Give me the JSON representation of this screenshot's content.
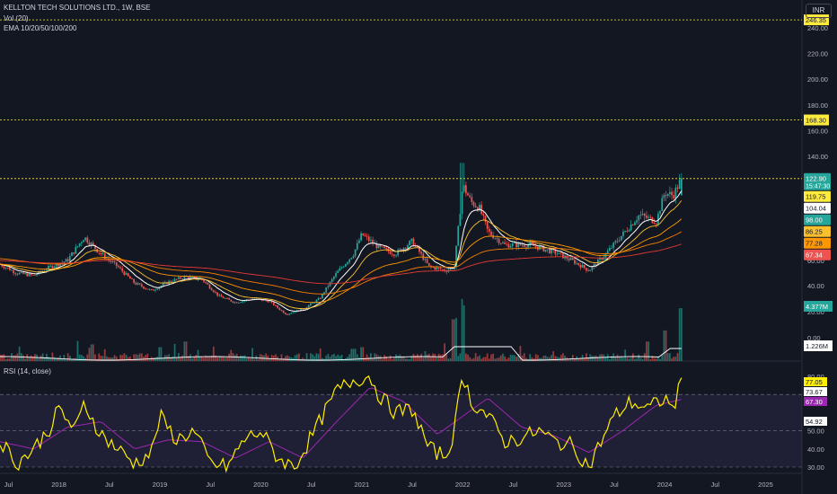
{
  "header": {
    "symbol_line": "KELLTON TECH SOLUTIONS LTD., 1W, BSE",
    "vol_line": "Vol (20)",
    "ema_line": "EMA 10/20/50/100/200",
    "rsi_line": "RSI (14, close)",
    "currency": "INR"
  },
  "colors": {
    "background": "#131722",
    "up": "#26a69a",
    "down": "#ef5350",
    "ema10": "#ffffff",
    "ema20": "#fbc02d",
    "ema50": "#ff9800",
    "ema100": "#f57c00",
    "ema200": "#e53935",
    "rsi": "#ffee00",
    "rsi_ma": "#9c27b0",
    "resistance": "#ffeb3b"
  },
  "chart_data": [
    {
      "type": "candlestick",
      "title": "KELLTON TECH SOLUTIONS LTD., 1W, BSE",
      "currency": "INR",
      "ylim": [
        0,
        250
      ],
      "y_ticks": [
        "240.00",
        "220.00",
        "200.00",
        "180.00",
        "160.00",
        "140.00",
        "60.00",
        "40.00",
        "20.00",
        "0.00"
      ],
      "x_ticks": [
        "Jul",
        "2018",
        "Jul",
        "2019",
        "Jul",
        "2020",
        "Jul",
        "2021",
        "Jul",
        "2022",
        "Jul",
        "2023",
        "Jul",
        "2024",
        "Jul",
        "2025"
      ],
      "x_range": [
        "2017-06",
        "2025-05"
      ],
      "price_path": [
        [
          "2017-06",
          57
        ],
        [
          "2017-08",
          50
        ],
        [
          "2017-10",
          48
        ],
        [
          "2017-12",
          55
        ],
        [
          "2018-02",
          60
        ],
        [
          "2018-04",
          78
        ],
        [
          "2018-06",
          65
        ],
        [
          "2018-08",
          55
        ],
        [
          "2018-10",
          42
        ],
        [
          "2018-12",
          36
        ],
        [
          "2019-02",
          43
        ],
        [
          "2019-04",
          47
        ],
        [
          "2019-06",
          45
        ],
        [
          "2019-08",
          32
        ],
        [
          "2019-10",
          27
        ],
        [
          "2019-12",
          30
        ],
        [
          "2020-02",
          28
        ],
        [
          "2020-04",
          18
        ],
        [
          "2020-06",
          22
        ],
        [
          "2020-08",
          30
        ],
        [
          "2020-10",
          50
        ],
        [
          "2020-12",
          65
        ],
        [
          "2021-01",
          80
        ],
        [
          "2021-03",
          70
        ],
        [
          "2021-05",
          65
        ],
        [
          "2021-07",
          75
        ],
        [
          "2021-09",
          55
        ],
        [
          "2021-11",
          52
        ],
        [
          "2021-12",
          55
        ],
        [
          "2022-01",
          118
        ],
        [
          "2022-02",
          105
        ],
        [
          "2022-03",
          100
        ],
        [
          "2022-04",
          82
        ],
        [
          "2022-06",
          72
        ],
        [
          "2022-09",
          72
        ],
        [
          "2022-12",
          66
        ],
        [
          "2023-02",
          60
        ],
        [
          "2023-04",
          52
        ],
        [
          "2023-06",
          65
        ],
        [
          "2023-08",
          80
        ],
        [
          "2023-10",
          95
        ],
        [
          "2023-12",
          90
        ],
        [
          "2024-01",
          112
        ],
        [
          "2024-02",
          110
        ],
        [
          "2024-03",
          122.9
        ]
      ],
      "ema_lines": [
        {
          "name": "EMA 10",
          "last": 104.04
        },
        {
          "name": "EMA 20",
          "last": 98.0
        },
        {
          "name": "EMA 50",
          "last": 86.25
        },
        {
          "name": "EMA 100",
          "last": 77.28
        },
        {
          "name": "EMA 200",
          "last": 67.34
        }
      ],
      "horizontal_levels": [
        {
          "label": "246.35",
          "value": 246.35
        },
        {
          "label": "168.30",
          "value": 168.3
        },
        {
          "label": "122.90",
          "value": 122.9
        }
      ],
      "price_labels": [
        {
          "text": "122.90",
          "sub": "15:47:30",
          "value": 122.9,
          "color": "#26a69a",
          "dark": false
        },
        {
          "text": "119.75",
          "value": 119.75,
          "color": "#ffeb3b",
          "dark": true
        },
        {
          "text": "104.04",
          "value": 104.04,
          "color": "#ffffff",
          "dark": true
        },
        {
          "text": "98.00",
          "value": 98.0,
          "color": "#26a69a",
          "dark": false
        },
        {
          "text": "86.25",
          "value": 86.25,
          "color": "#fbc02d",
          "dark": true
        },
        {
          "text": "77.28",
          "value": 77.28,
          "color": "#ff9800",
          "dark": true
        },
        {
          "text": "67.34",
          "value": 67.34,
          "color": "#ef5350",
          "dark": false
        }
      ]
    },
    {
      "type": "bar",
      "title": "Vol (20)",
      "last_volume": "4.377M",
      "volume_ma": "1.226M",
      "spikes": [
        [
          "2018-05",
          0.3
        ],
        [
          "2019-01",
          0.25
        ],
        [
          "2019-04",
          0.35
        ],
        [
          "2020-12",
          0.22
        ],
        [
          "2021-01",
          0.25
        ],
        [
          "2021-12",
          0.75
        ],
        [
          "2022-01",
          1.0
        ],
        [
          "2023-11",
          0.35
        ],
        [
          "2024-01",
          0.55
        ],
        [
          "2024-03",
          0.95
        ]
      ]
    },
    {
      "type": "line",
      "title": "RSI (14, close)",
      "ylim": [
        25,
        85
      ],
      "y_ticks": [
        "80.00",
        "50.00",
        "40.00",
        "30.00"
      ],
      "bands": [
        70,
        50,
        30
      ],
      "rsi_path": [
        [
          "2017-06",
          45
        ],
        [
          "2017-08",
          32
        ],
        [
          "2017-10",
          40
        ],
        [
          "2017-12",
          52
        ],
        [
          "2018-01",
          62
        ],
        [
          "2018-03",
          50
        ],
        [
          "2018-04",
          65
        ],
        [
          "2018-06",
          48
        ],
        [
          "2018-08",
          40
        ],
        [
          "2018-10",
          32
        ],
        [
          "2018-12",
          38
        ],
        [
          "2019-01",
          58
        ],
        [
          "2019-03",
          45
        ],
        [
          "2019-05",
          50
        ],
        [
          "2019-07",
          32
        ],
        [
          "2019-09",
          30
        ],
        [
          "2019-11",
          45
        ],
        [
          "2020-01",
          50
        ],
        [
          "2020-03",
          35
        ],
        [
          "2020-05",
          30
        ],
        [
          "2020-08",
          55
        ],
        [
          "2020-10",
          72
        ],
        [
          "2020-12",
          78
        ],
        [
          "2021-02",
          80
        ],
        [
          "2021-03",
          70
        ],
        [
          "2021-05",
          60
        ],
        [
          "2021-07",
          62
        ],
        [
          "2021-09",
          40
        ],
        [
          "2021-11",
          36
        ],
        [
          "2021-12",
          50
        ],
        [
          "2022-01",
          82
        ],
        [
          "2022-02",
          66
        ],
        [
          "2022-04",
          58
        ],
        [
          "2022-06",
          44
        ],
        [
          "2022-08",
          46
        ],
        [
          "2022-10",
          50
        ],
        [
          "2022-12",
          44
        ],
        [
          "2023-02",
          42
        ],
        [
          "2023-04",
          30
        ],
        [
          "2023-05",
          40
        ],
        [
          "2023-07",
          58
        ],
        [
          "2023-09",
          66
        ],
        [
          "2023-11",
          62
        ],
        [
          "2024-01",
          68
        ],
        [
          "2024-02",
          62
        ],
        [
          "2024-03",
          77.05
        ]
      ],
      "rsi_ma_path": [
        [
          "2017-06",
          44
        ],
        [
          "2017-10",
          40
        ],
        [
          "2018-02",
          52
        ],
        [
          "2018-06",
          55
        ],
        [
          "2018-10",
          40
        ],
        [
          "2019-02",
          45
        ],
        [
          "2019-06",
          44
        ],
        [
          "2019-10",
          35
        ],
        [
          "2020-02",
          44
        ],
        [
          "2020-06",
          35
        ],
        [
          "2020-10",
          55
        ],
        [
          "2021-02",
          74
        ],
        [
          "2021-06",
          66
        ],
        [
          "2021-10",
          48
        ],
        [
          "2022-01",
          58
        ],
        [
          "2022-04",
          68
        ],
        [
          "2022-08",
          52
        ],
        [
          "2022-12",
          47
        ],
        [
          "2023-04",
          38
        ],
        [
          "2023-08",
          50
        ],
        [
          "2023-12",
          64
        ],
        [
          "2024-03",
          67.3
        ]
      ],
      "labels": [
        {
          "text": "77.05",
          "value": 77.05,
          "color": "#ffee00",
          "dark": true
        },
        {
          "text": "73.67",
          "value": 73.67,
          "color": "#ffffff",
          "dark": true
        },
        {
          "text": "67.30",
          "value": 67.3,
          "color": "#9c27b0",
          "dark": false
        },
        {
          "text": "54.92",
          "value": 54.92,
          "color": "#ffffff",
          "dark": true
        }
      ]
    }
  ]
}
